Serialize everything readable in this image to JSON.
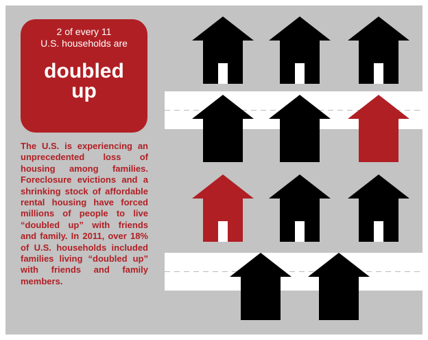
{
  "badge": {
    "line1": "2 of every 11",
    "line2": "U.S. households are",
    "big1": "doubled",
    "big2": "up"
  },
  "paragraph": "The U.S. is experiencing an unprecedented loss of housing among families. Foreclosure evictions and a shrinking stock of affordable rental housing have forced millions of people to live “doubled up” with friends and family. In 2011, over 18% of U.S. households included families living “doubled up” with friends and family members."
}
